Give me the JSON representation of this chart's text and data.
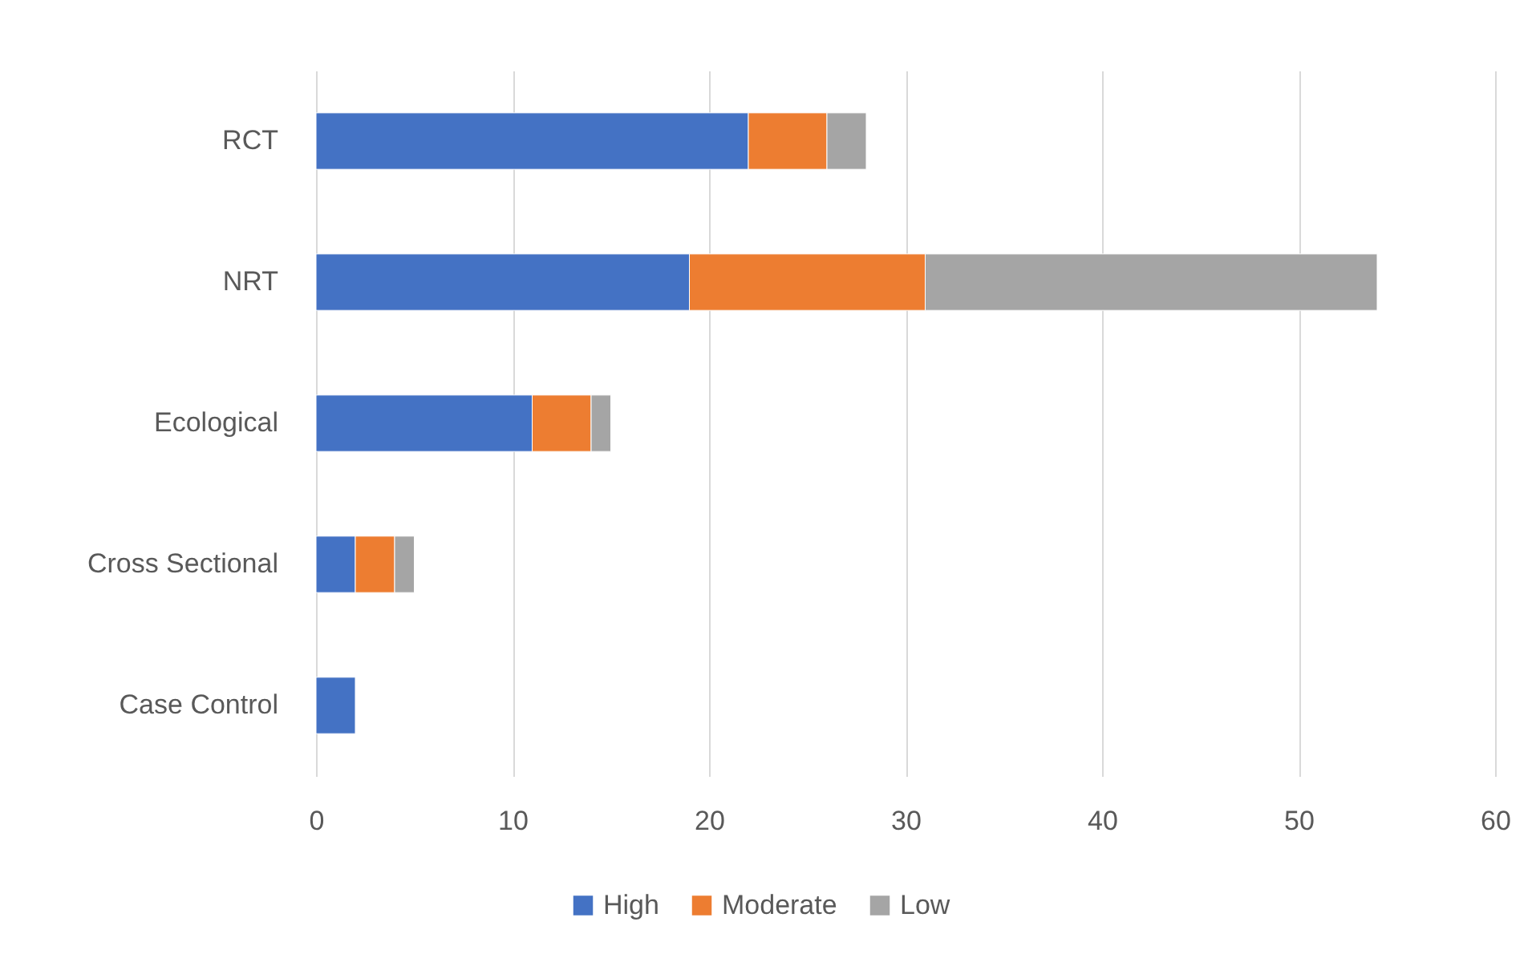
{
  "chart_data": {
    "type": "bar",
    "orientation": "horizontal",
    "stacked": true,
    "categories": [
      "RCT",
      "NRT",
      "Ecological",
      "Cross Sectional",
      "Case Control"
    ],
    "series": [
      {
        "name": "High",
        "color": "#4472c4",
        "values": [
          22,
          19,
          11,
          2,
          2
        ]
      },
      {
        "name": "Moderate",
        "color": "#ed7d31",
        "values": [
          4,
          12,
          3,
          2,
          0
        ]
      },
      {
        "name": "Low",
        "color": "#a5a5a5",
        "values": [
          2,
          23,
          1,
          1,
          0
        ]
      }
    ],
    "xlim": [
      0,
      60
    ],
    "xticks": [
      0,
      10,
      20,
      30,
      40,
      50,
      60
    ],
    "grid": "x",
    "legend": "bottom"
  }
}
